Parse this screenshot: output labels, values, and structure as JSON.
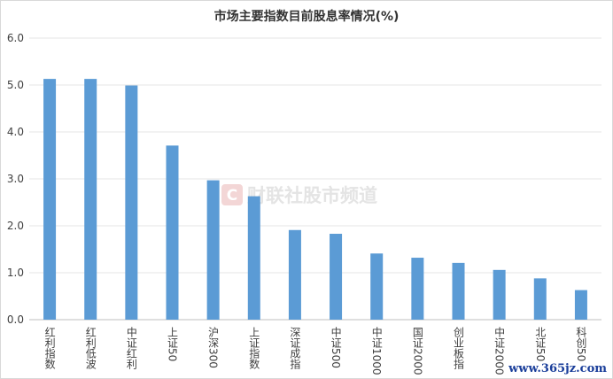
{
  "chart_data": {
    "type": "bar",
    "title": "市场主要指数目前股息率情况(%)",
    "categories": [
      "红利指数",
      "红利低波",
      "中证红利",
      "上证50",
      "沪深300",
      "上证指数",
      "深证成指",
      "中证500",
      "中证1000",
      "国证2000",
      "创业板指",
      "中证2000",
      "北证50",
      "科创50"
    ],
    "values": [
      5.13,
      5.13,
      4.99,
      3.71,
      2.97,
      2.63,
      1.91,
      1.83,
      1.41,
      1.32,
      1.21,
      1.06,
      0.88,
      0.63
    ],
    "ylim": [
      0,
      6
    ],
    "yticks": [
      "0.0",
      "1.0",
      "2.0",
      "3.0",
      "4.0",
      "5.0",
      "6.0"
    ],
    "grid": true,
    "bar_color": "#5b9bd5"
  },
  "watermark": {
    "text": "财联社股市频道",
    "logo_letter": "C"
  },
  "footer_url": "www.365jz.com"
}
